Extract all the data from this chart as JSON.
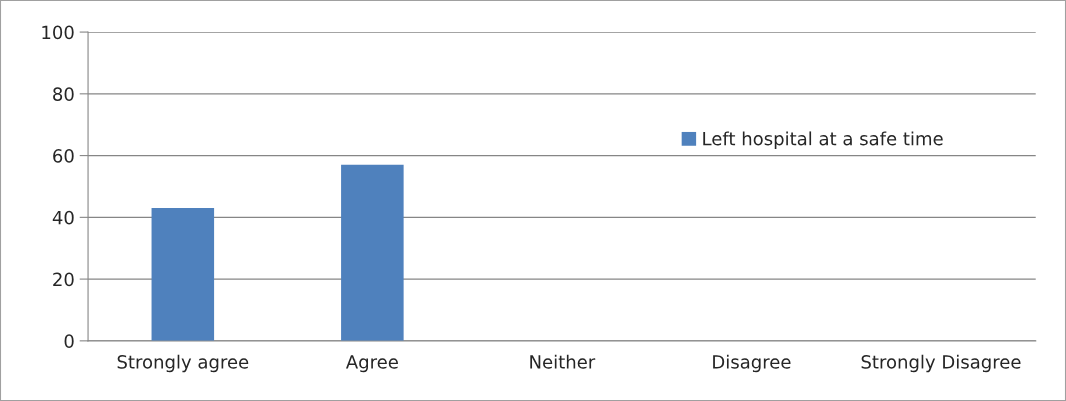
{
  "chart_data": {
    "type": "bar",
    "categories": [
      "Strongly agree",
      "Agree",
      "Neither",
      "Disagree",
      "Strongly Disagree"
    ],
    "series": [
      {
        "name": "Left hospital at a safe time",
        "color": "#4f81bd",
        "values": [
          43,
          57,
          0,
          0,
          0
        ]
      }
    ],
    "ylim": [
      0,
      100
    ],
    "yticks": [
      0,
      20,
      40,
      60,
      80,
      100
    ],
    "grid": "y",
    "legend": "right"
  }
}
